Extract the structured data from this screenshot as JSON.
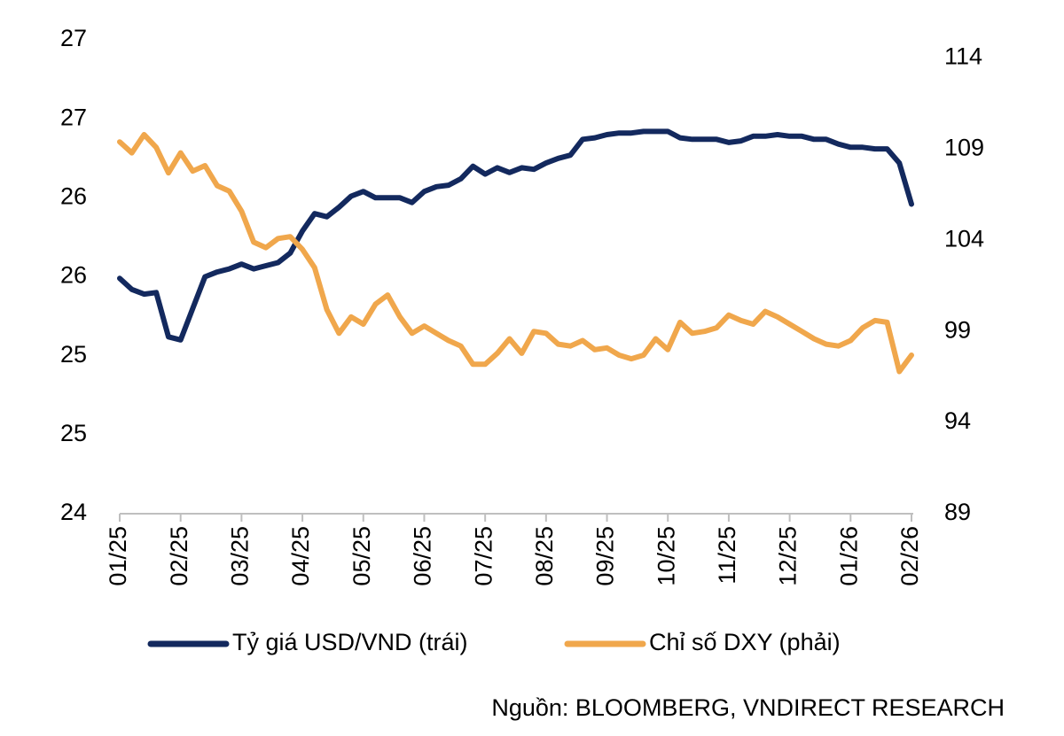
{
  "chart_data": {
    "type": "line",
    "categories": [
      "01/25",
      null,
      null,
      null,
      null,
      "02/25",
      null,
      null,
      null,
      null,
      "03/25",
      null,
      null,
      null,
      null,
      "04/25",
      null,
      null,
      null,
      null,
      "05/25",
      null,
      null,
      null,
      null,
      "06/25",
      null,
      null,
      null,
      null,
      "07/25",
      null,
      null,
      null,
      null,
      "08/25",
      null,
      null,
      null,
      null,
      "09/25",
      null,
      null,
      null,
      null,
      "10/25",
      null,
      null,
      null,
      null,
      "11/25",
      null,
      null,
      null,
      null,
      "12/25",
      null,
      null,
      null,
      null,
      "01/26",
      null,
      null,
      null,
      null,
      "02/26"
    ],
    "series": [
      {
        "name": "Tỷ giá USD/VND (trái)",
        "color": "#13295e",
        "axis": "y",
        "values": [
          25.49,
          25.42,
          25.39,
          25.4,
          25.12,
          25.1,
          25.3,
          25.5,
          25.53,
          25.55,
          25.58,
          25.55,
          25.57,
          25.59,
          25.65,
          25.79,
          25.9,
          25.88,
          25.94,
          26.01,
          26.04,
          26.0,
          26.0,
          26.0,
          25.97,
          26.04,
          26.07,
          26.08,
          26.12,
          26.2,
          26.15,
          26.19,
          26.16,
          26.19,
          26.18,
          26.22,
          26.25,
          26.27,
          26.37,
          26.38,
          26.4,
          26.41,
          26.41,
          26.42,
          26.42,
          26.42,
          26.38,
          26.37,
          26.37,
          26.37,
          26.35,
          26.36,
          26.39,
          26.39,
          26.4,
          26.39,
          26.39,
          26.37,
          26.37,
          26.34,
          26.32,
          26.32,
          26.31,
          26.31,
          26.22,
          25.96
        ]
      },
      {
        "name": "Chỉ số DXY (phải)",
        "color": "#f0a74c",
        "axis": "y2",
        "values": [
          109.4,
          108.8,
          109.8,
          109.1,
          107.7,
          108.8,
          107.8,
          108.1,
          107.0,
          106.7,
          105.6,
          103.9,
          103.6,
          104.1,
          104.2,
          103.5,
          102.5,
          100.2,
          98.9,
          99.8,
          99.4,
          100.5,
          101.0,
          99.8,
          98.9,
          99.3,
          98.9,
          98.5,
          98.2,
          97.2,
          97.2,
          97.8,
          98.6,
          97.8,
          99.0,
          98.9,
          98.3,
          98.2,
          98.5,
          98.0,
          98.1,
          97.7,
          97.5,
          97.7,
          98.6,
          98.0,
          99.5,
          98.9,
          99.0,
          99.2,
          99.9,
          99.6,
          99.4,
          100.1,
          99.8,
          99.4,
          99.0,
          98.6,
          98.3,
          98.2,
          98.5,
          99.2,
          99.6,
          99.5,
          96.8,
          97.7
        ]
      }
    ],
    "ylim": [
      24,
      27
    ],
    "yticks": [
      24,
      {
        "value": 24.5,
        "label": "25"
      },
      25,
      {
        "value": 25.5,
        "label": "26"
      },
      26,
      {
        "value": 26.5,
        "label": "27"
      },
      27
    ],
    "y2lim": [
      89,
      115
    ],
    "y2ticks": [
      89,
      94,
      99,
      104,
      109,
      114
    ],
    "grid": false,
    "legend": "bottom",
    "source": "Nguồn:  BLOOMBERG, VNDIRECT RESEARCH"
  }
}
